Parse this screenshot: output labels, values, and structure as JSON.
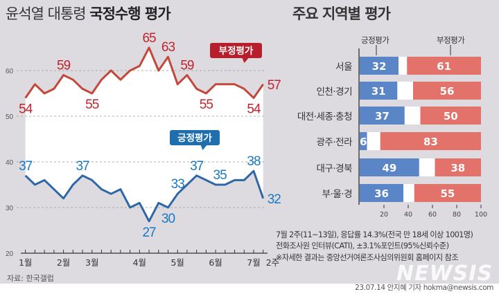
{
  "left_title": {
    "prefix": "윤석열 대통령 ",
    "bold": "국정수행 평가"
  },
  "right_title": "주요 지역별 평가",
  "chart_data": [
    {
      "type": "line",
      "title": "윤석열 대통령 국정수행 평가",
      "x_tick_labels": [
        {
          "index": 0,
          "label": "1월"
        },
        {
          "index": 4,
          "label": "2월"
        },
        {
          "index": 7,
          "label": "3월"
        },
        {
          "index": 12,
          "label": "4월"
        },
        {
          "index": 16,
          "label": "5월"
        },
        {
          "index": 20,
          "label": "6월"
        },
        {
          "index": 24,
          "label": "7월"
        },
        {
          "index": 25,
          "label": "2주"
        }
      ],
      "y_ticks": [
        "20",
        "30",
        "40",
        "50",
        "60"
      ],
      "ylim": [
        20,
        67
      ],
      "grid": "dashed horizontal",
      "series": [
        {
          "name": "부정평가",
          "color": "#c3473a",
          "label_color": "#c0232e",
          "badge_color": "#b81f2d",
          "values": [
            54,
            57,
            55,
            56,
            59,
            58,
            56,
            55,
            58,
            60,
            58,
            60,
            61,
            65,
            60,
            63,
            57,
            59,
            56,
            55,
            57,
            57,
            57,
            56,
            54,
            57
          ],
          "labels": [
            {
              "index": 0,
              "pos": "below"
            },
            {
              "index": 4,
              "pos": "above"
            },
            {
              "index": 7,
              "pos": "below"
            },
            {
              "index": 13,
              "pos": "above"
            },
            {
              "index": 15,
              "pos": "above"
            },
            {
              "index": 17,
              "pos": "above"
            },
            {
              "index": 19,
              "pos": "below"
            },
            {
              "index": 24,
              "pos": "below"
            },
            {
              "index": 25,
              "pos": "right"
            }
          ]
        },
        {
          "name": "긍정평가",
          "color": "#2f67a6",
          "label_color": "#1b78c0",
          "badge_color": "#1f6fae",
          "values": [
            37,
            35,
            36,
            34,
            32,
            35,
            37,
            36,
            34,
            33,
            34,
            30,
            31,
            27,
            31,
            30,
            33,
            35,
            37,
            36,
            35,
            35,
            36,
            36,
            38,
            32
          ],
          "labels": [
            {
              "index": 0,
              "pos": "above"
            },
            {
              "index": 6,
              "pos": "above"
            },
            {
              "index": 13,
              "pos": "below"
            },
            {
              "index": 15,
              "pos": "below"
            },
            {
              "index": 16,
              "pos": "above"
            },
            {
              "index": 18,
              "pos": "above"
            },
            {
              "index": 20,
              "pos": "above"
            },
            {
              "index": 24,
              "pos": "above"
            },
            {
              "index": 25,
              "pos": "right"
            }
          ]
        }
      ],
      "source": "자료: 한국갤럽"
    },
    {
      "type": "bar",
      "stacked": true,
      "orientation": "horizontal",
      "title": "주요 지역별 평가",
      "categories": [
        "서울",
        "인천·경기",
        "대전·세종·충청",
        "광주·전라",
        "대구·경북",
        "부·울·경"
      ],
      "series": [
        {
          "name": "긍정평가",
          "color": "#5a85c6",
          "values": [
            32,
            31,
            37,
            6,
            49,
            36
          ]
        },
        {
          "name": "부정평가",
          "color": "#e2726a",
          "values": [
            61,
            56,
            50,
            83,
            38,
            55
          ]
        }
      ],
      "x_ticks": [
        "20",
        "40",
        "60",
        "80",
        "100"
      ],
      "xlim": [
        0,
        100
      ]
    }
  ],
  "notes": [
    "7월 2주(11~13일), 응답률 14.3%(전국 만 18세 이상 1001명)",
    "전화조사원 인터뷰(CATI), ±3.1%포인트(95%신뢰수준)",
    "※자세한 결과는 중앙선거여론조사심의위원회 홈페이지 참조"
  ],
  "watermark": "NEWSIS",
  "credit": "23.07.14 안지혜 기자 hokma@newsis.com"
}
